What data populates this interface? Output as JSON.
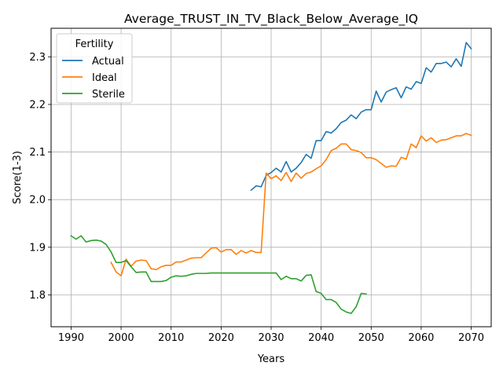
{
  "chart_data": {
    "type": "line",
    "title": "Average_TRUST_IN_TV_Black_Below_Average_IQ",
    "xlabel": "Years",
    "ylabel": "Score(1-3)",
    "xlim": [
      1986,
      2074
    ],
    "ylim": [
      1.733,
      2.36
    ],
    "xticks": [
      1990,
      2000,
      2010,
      2020,
      2030,
      2040,
      2050,
      2060,
      2070
    ],
    "yticks": [
      1.8,
      1.9,
      2.0,
      2.1,
      2.2,
      2.3
    ],
    "ytick_labels": [
      "1.8",
      "1.9",
      "2.0",
      "2.1",
      "2.2",
      "2.3"
    ],
    "grid": true,
    "legend": {
      "title": "Fertility",
      "placement": "top-left"
    },
    "series": [
      {
        "name": "Actual",
        "color": "#1f77b4",
        "x": [
          2026,
          2027,
          2028,
          2029,
          2030,
          2031,
          2032,
          2033,
          2034,
          2035,
          2036,
          2037,
          2038,
          2039,
          2040,
          2041,
          2042,
          2043,
          2044,
          2045,
          2046,
          2047,
          2048,
          2049,
          2050,
          2051,
          2052,
          2053,
          2054,
          2055,
          2056,
          2057,
          2058,
          2059,
          2060,
          2061,
          2062,
          2063,
          2064,
          2065,
          2066,
          2067,
          2068,
          2069,
          2070
        ],
        "values": [
          2.02,
          2.029,
          2.027,
          2.051,
          2.057,
          2.066,
          2.058,
          2.08,
          2.058,
          2.066,
          2.078,
          2.095,
          2.087,
          2.124,
          2.124,
          2.143,
          2.14,
          2.149,
          2.162,
          2.167,
          2.178,
          2.17,
          2.184,
          2.189,
          2.189,
          2.228,
          2.205,
          2.226,
          2.231,
          2.235,
          2.214,
          2.237,
          2.232,
          2.248,
          2.244,
          2.277,
          2.268,
          2.286,
          2.286,
          2.289,
          2.279,
          2.296,
          2.28,
          2.33,
          2.317
        ]
      },
      {
        "name": "Ideal",
        "color": "#ff7f0e",
        "x": [
          1998,
          1999,
          2000,
          2001,
          2002,
          2003,
          2004,
          2005,
          2006,
          2007,
          2008,
          2009,
          2010,
          2011,
          2012,
          2013,
          2014,
          2015,
          2016,
          2017,
          2018,
          2019,
          2020,
          2021,
          2022,
          2023,
          2024,
          2025,
          2026,
          2027,
          2028,
          2029,
          2030,
          2031,
          2032,
          2033,
          2034,
          2035,
          2036,
          2037,
          2038,
          2039,
          2040,
          2041,
          2042,
          2043,
          2044,
          2045,
          2046,
          2047,
          2048,
          2049,
          2050,
          2051,
          2052,
          2053,
          2054,
          2055,
          2056,
          2057,
          2058,
          2059,
          2060,
          2061,
          2062,
          2063,
          2064,
          2065,
          2066,
          2067,
          2068,
          2069,
          2070
        ],
        "values": [
          1.868,
          1.848,
          1.84,
          1.875,
          1.86,
          1.871,
          1.873,
          1.872,
          1.855,
          1.853,
          1.859,
          1.862,
          1.862,
          1.869,
          1.869,
          1.873,
          1.877,
          1.878,
          1.878,
          1.888,
          1.898,
          1.899,
          1.89,
          1.895,
          1.895,
          1.885,
          1.893,
          1.888,
          1.893,
          1.889,
          1.889,
          2.056,
          2.044,
          2.05,
          2.04,
          2.057,
          2.038,
          2.056,
          2.045,
          2.055,
          2.058,
          2.065,
          2.071,
          2.084,
          2.103,
          2.108,
          2.117,
          2.117,
          2.105,
          2.103,
          2.099,
          2.088,
          2.088,
          2.084,
          2.076,
          2.068,
          2.071,
          2.07,
          2.089,
          2.085,
          2.117,
          2.109,
          2.134,
          2.123,
          2.13,
          2.12,
          2.125,
          2.126,
          2.13,
          2.134,
          2.134,
          2.139,
          2.135
        ]
      },
      {
        "name": "Sterile",
        "color": "#2ca02c",
        "x": [
          1990,
          1991,
          1992,
          1993,
          1994,
          1995,
          1996,
          1997,
          1998,
          1999,
          2000,
          2001,
          2002,
          2003,
          2004,
          2005,
          2006,
          2007,
          2008,
          2009,
          2010,
          2011,
          2012,
          2013,
          2014,
          2015,
          2016,
          2017,
          2018,
          2019,
          2020,
          2021,
          2022,
          2023,
          2024,
          2025,
          2026,
          2027,
          2028,
          2029,
          2030,
          2031,
          2032,
          2033,
          2034,
          2035,
          2036,
          2037,
          2038,
          2039,
          2040,
          2041,
          2042,
          2043,
          2044,
          2045,
          2046,
          2047,
          2048,
          2049
        ],
        "values": [
          1.924,
          1.917,
          1.924,
          1.911,
          1.914,
          1.915,
          1.913,
          1.906,
          1.89,
          1.868,
          1.868,
          1.872,
          1.859,
          1.847,
          1.848,
          1.848,
          1.828,
          1.828,
          1.828,
          1.83,
          1.837,
          1.84,
          1.839,
          1.84,
          1.843,
          1.845,
          1.845,
          1.845,
          1.846,
          1.846,
          1.846,
          1.846,
          1.846,
          1.846,
          1.846,
          1.846,
          1.846,
          1.846,
          1.846,
          1.846,
          1.846,
          1.846,
          1.832,
          1.839,
          1.834,
          1.834,
          1.829,
          1.841,
          1.842,
          1.807,
          1.803,
          1.79,
          1.79,
          1.784,
          1.77,
          1.764,
          1.761,
          1.775,
          1.803,
          1.802
        ]
      }
    ]
  }
}
